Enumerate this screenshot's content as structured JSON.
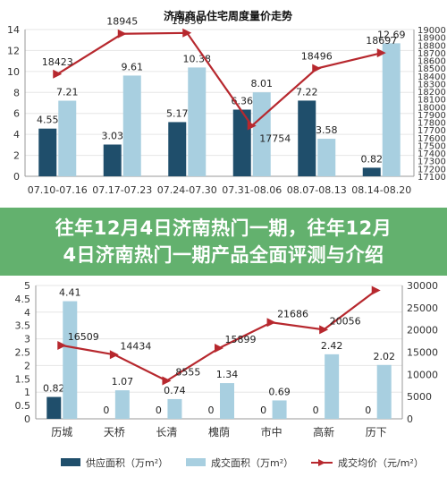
{
  "banner": {
    "line1": "往年12月4日济南热门一期，往年12月",
    "line2": "4日济南热门一期产品全面评测与介绍"
  },
  "colors": {
    "supply": "#1f4e6b",
    "deal": "#a8cfe0",
    "price": "#b7282e",
    "axis_text": "#333333",
    "grid": "#e6e6e6"
  },
  "chart_data": [
    {
      "type": "bar",
      "title": "济南商品住宅周度量价走势",
      "categories": [
        "07.10-07.16",
        "07.17-07.23",
        "07.24-07.30",
        "07.31-08.06",
        "08.07-08.13",
        "08.14-08.20"
      ],
      "series": [
        {
          "kind": "bar",
          "axis": "left",
          "values": [
            4.55,
            3.03,
            5.17,
            6.36,
            7.22,
            0.82
          ]
        },
        {
          "kind": "bar",
          "axis": "left",
          "values": [
            7.21,
            9.61,
            10.38,
            8.01,
            3.58,
            12.69
          ]
        },
        {
          "kind": "line",
          "axis": "right",
          "values": [
            18423,
            18945,
            18956,
            17754,
            18496,
            18697
          ]
        }
      ],
      "left_ticks": [
        "0",
        "2",
        "4",
        "6",
        "8",
        "10",
        "12",
        "14"
      ],
      "right_ticks": [
        "17100",
        "17200",
        "17300",
        "17400",
        "17500",
        "17600",
        "17700",
        "17800",
        "17900",
        "18000",
        "18100",
        "18200",
        "18300",
        "18400",
        "18500",
        "18600",
        "18700",
        "18800",
        "18900",
        "19000"
      ],
      "ylim_left": [
        0,
        14
      ],
      "ylim_right": [
        17100,
        19000
      ]
    },
    {
      "type": "bar",
      "categories": [
        "历城",
        "天桥",
        "长清",
        "槐荫",
        "市中",
        "高新",
        "历下"
      ],
      "series": [
        {
          "kind": "bar",
          "axis": "left",
          "name": "供应面积（万m²）",
          "values": [
            0.82,
            0,
            0,
            0,
            0,
            0,
            0
          ]
        },
        {
          "kind": "bar",
          "axis": "left",
          "name": "成交面积（万m²）",
          "values": [
            4.41,
            1.07,
            0.74,
            1.34,
            0.69,
            2.42,
            2.02
          ]
        },
        {
          "kind": "line",
          "axis": "right",
          "name": "成交均价（元/m²）",
          "values": [
            16509,
            14434,
            8555,
            15899,
            21686,
            20056,
            28900
          ]
        }
      ],
      "point_labels": [
        "16509",
        "14434",
        "8555",
        "15899",
        "21686",
        "20056",
        ""
      ],
      "zero_labels": [
        "",
        "0",
        "0",
        "0",
        "0",
        "0",
        "0"
      ],
      "left_ticks": [
        "0",
        "0.5",
        "1",
        "1.5",
        "2",
        "2.5",
        "3",
        "3.5",
        "4",
        "4.5",
        "5"
      ],
      "right_ticks": [
        "0",
        "5000",
        "10000",
        "15000",
        "20000",
        "25000",
        "30000"
      ],
      "ylim_left": [
        0,
        5
      ],
      "ylim_right": [
        0,
        30000
      ],
      "legend": [
        "供应面积（万m²）",
        "成交面积（万m²）",
        "成交均价（元/m²）"
      ]
    }
  ]
}
